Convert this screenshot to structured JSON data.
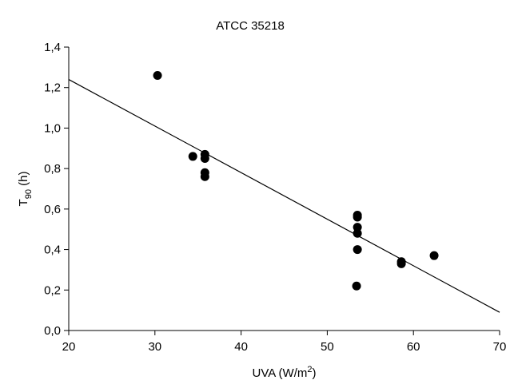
{
  "chart_data": {
    "type": "scatter",
    "title": "ATCC 35218",
    "xlabel": {
      "main": "UVA (W/m",
      "sup": "2",
      "tail": ")"
    },
    "ylabel": {
      "main": "T",
      "sub": "90",
      "tail": " (h)"
    },
    "xlim": [
      20,
      70
    ],
    "ylim": [
      0,
      1.4
    ],
    "x_ticks": [
      20,
      30,
      40,
      50,
      60,
      70
    ],
    "y_ticks": [
      0,
      0.2,
      0.4,
      0.6,
      0.8,
      1.0,
      1.2,
      1.4
    ],
    "x_tick_labels": [
      "20",
      "30",
      "40",
      "50",
      "60",
      "70"
    ],
    "y_tick_labels": [
      "0,0",
      "0,2",
      "0,4",
      "0,6",
      "0,8",
      "1,0",
      "1,2",
      "1,4"
    ],
    "grid": false,
    "points": [
      {
        "x": 30.3,
        "y": 1.26
      },
      {
        "x": 34.4,
        "y": 0.86
      },
      {
        "x": 35.8,
        "y": 0.87
      },
      {
        "x": 35.8,
        "y": 0.85
      },
      {
        "x": 35.8,
        "y": 0.78
      },
      {
        "x": 35.8,
        "y": 0.76
      },
      {
        "x": 53.4,
        "y": 0.22
      },
      {
        "x": 53.5,
        "y": 0.57
      },
      {
        "x": 53.5,
        "y": 0.56
      },
      {
        "x": 53.5,
        "y": 0.51
      },
      {
        "x": 53.5,
        "y": 0.48
      },
      {
        "x": 53.5,
        "y": 0.4
      },
      {
        "x": 58.6,
        "y": 0.34
      },
      {
        "x": 58.6,
        "y": 0.33
      },
      {
        "x": 62.4,
        "y": 0.37
      }
    ],
    "fit_line": {
      "x": [
        20,
        70
      ],
      "y": [
        1.24,
        0.09
      ]
    }
  }
}
